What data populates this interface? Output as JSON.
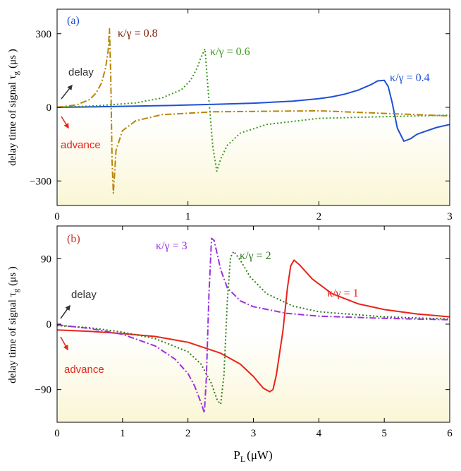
{
  "chart_data": [
    {
      "type": "line",
      "panel_label": "(a)",
      "ylabel": "delay time of signal  τ",
      "ylabel_sub": "g",
      "ylabel_unit": "(μs )",
      "xlim": [
        0,
        3
      ],
      "ylim": [
        -400,
        400
      ],
      "xticks": [
        "0",
        "1",
        "2",
        "3"
      ],
      "yticks": [
        "300",
        "0",
        "−300"
      ],
      "ytick_values": [
        300,
        0,
        -300
      ],
      "annotations": [
        {
          "text": "delay",
          "color": "#333333",
          "arrow": "up"
        },
        {
          "text": "advance",
          "color": "#e8231a",
          "arrow": "down"
        }
      ],
      "series": [
        {
          "label": "κ/γ = 0.4",
          "color": "#1f4fd6",
          "style": "solid",
          "x": [
            0,
            0.3,
            0.6,
            0.9,
            1.2,
            1.5,
            1.8,
            2.0,
            2.1,
            2.2,
            2.3,
            2.4,
            2.45,
            2.5,
            2.53,
            2.56,
            2.6,
            2.65,
            2.7,
            2.75,
            2.8,
            2.9,
            3.0
          ],
          "y": [
            0,
            2,
            5,
            8,
            12,
            17,
            25,
            35,
            43,
            54,
            70,
            93,
            108,
            110,
            85,
            20,
            -85,
            -138,
            -128,
            -110,
            -100,
            -82,
            -70
          ]
        },
        {
          "label": "κ/γ = 0.6",
          "color": "#3a9a1a",
          "style": "dotted",
          "x": [
            0,
            0.3,
            0.6,
            0.8,
            0.95,
            1.02,
            1.07,
            1.1,
            1.13,
            1.16,
            1.19,
            1.22,
            1.25,
            1.3,
            1.4,
            1.6,
            2.0,
            2.5,
            3.0
          ],
          "y": [
            0,
            6,
            18,
            38,
            72,
            110,
            160,
            205,
            238,
            30,
            -160,
            -260,
            -210,
            -155,
            -105,
            -70,
            -45,
            -38,
            -32
          ]
        },
        {
          "label": "κ/γ = 0.8",
          "color": "#b8860b",
          "style": "dashdot",
          "x": [
            0,
            0.15,
            0.25,
            0.3,
            0.34,
            0.37,
            0.39,
            0.4,
            0.41,
            0.42,
            0.43,
            0.45,
            0.5,
            0.6,
            0.8,
            1.2,
            2.0,
            3.0
          ],
          "y": [
            0,
            10,
            32,
            60,
            100,
            160,
            230,
            320,
            130,
            -220,
            -350,
            -175,
            -95,
            -55,
            -30,
            -18,
            -14,
            -35
          ]
        }
      ]
    },
    {
      "type": "line",
      "panel_label": "(b)",
      "ylabel": "delay time of signal  τ",
      "ylabel_sub": "g",
      "ylabel_unit": "(μs )",
      "xlabel": "P",
      "xlabel_sub": "L",
      "xlabel_unit": "(μW)",
      "xlim": [
        0,
        6
      ],
      "ylim": [
        -135,
        135
      ],
      "xticks": [
        "0",
        "1",
        "2",
        "3",
        "4",
        "5",
        "6"
      ],
      "yticks": [
        "90",
        "0",
        "−90"
      ],
      "ytick_values": [
        90,
        0,
        -90
      ],
      "annotations": [
        {
          "text": "delay",
          "color": "#333333",
          "arrow": "up"
        },
        {
          "text": "advance",
          "color": "#e8231a",
          "arrow": "down"
        }
      ],
      "series": [
        {
          "label": "κ/γ = 1",
          "color": "#e8231a",
          "style": "solid",
          "x": [
            0,
            0.5,
            1.0,
            1.5,
            2.0,
            2.5,
            2.8,
            3.0,
            3.15,
            3.25,
            3.3,
            3.35,
            3.45,
            3.52,
            3.57,
            3.62,
            3.7,
            3.9,
            4.2,
            4.6,
            5.0,
            5.5,
            6.0
          ],
          "y": [
            -8,
            -10,
            -13,
            -17,
            -25,
            -40,
            -55,
            -72,
            -88,
            -93,
            -90,
            -70,
            -10,
            50,
            80,
            88,
            82,
            62,
            42,
            28,
            20,
            14,
            10
          ]
        },
        {
          "label": "κ/γ = 2",
          "color": "#2f7a1a",
          "style": "dotted",
          "x": [
            0,
            0.5,
            1.0,
            1.5,
            2.0,
            2.2,
            2.35,
            2.45,
            2.5,
            2.55,
            2.6,
            2.65,
            2.7,
            2.8,
            2.95,
            3.2,
            3.6,
            4.0,
            5.0,
            6.0
          ],
          "y": [
            -2,
            -5,
            -11,
            -20,
            -38,
            -55,
            -80,
            -105,
            -110,
            -70,
            30,
            92,
            100,
            88,
            65,
            42,
            25,
            17,
            10,
            7
          ]
        },
        {
          "label": "κ/γ = 3",
          "color": "#9b30e0",
          "style": "dashdot",
          "x": [
            0,
            0.5,
            1.0,
            1.5,
            1.8,
            2.0,
            2.1,
            2.2,
            2.25,
            2.28,
            2.32,
            2.36,
            2.4,
            2.5,
            2.6,
            2.8,
            3.0,
            3.5,
            4.0,
            5.0,
            6.0
          ],
          "y": [
            -1,
            -6,
            -14,
            -30,
            -48,
            -68,
            -85,
            -108,
            -122,
            -75,
            40,
            118,
            115,
            75,
            50,
            32,
            24,
            15,
            11,
            8,
            6
          ]
        }
      ]
    }
  ]
}
